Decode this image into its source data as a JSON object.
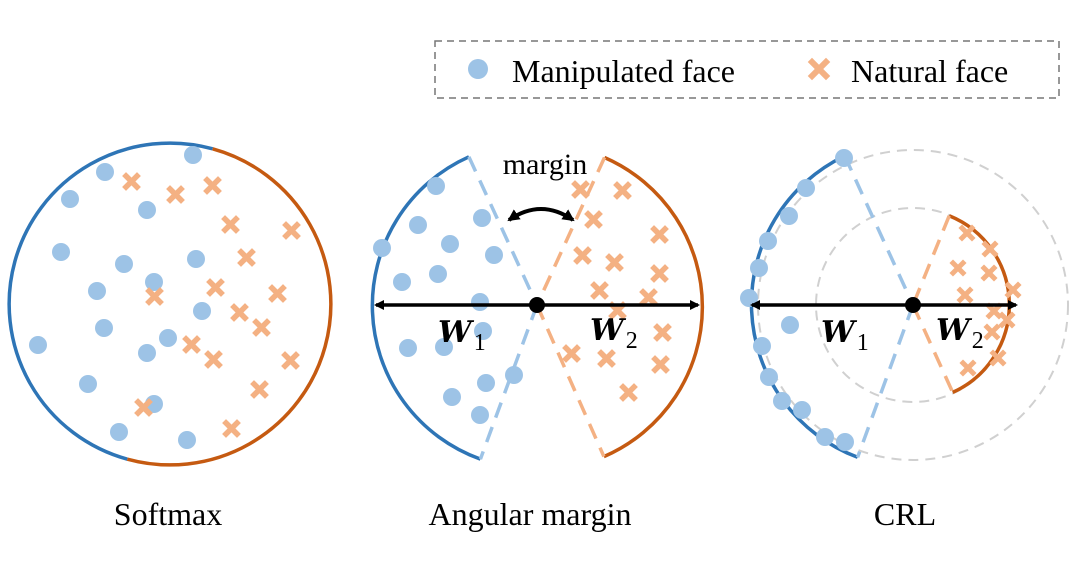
{
  "legend": {
    "manipulated_label": "Manipulated face",
    "natural_label": "Natural face"
  },
  "panels": {
    "softmax": {
      "caption": "Softmax"
    },
    "angular": {
      "caption": "Angular margin",
      "margin_label": "margin",
      "w1": "W",
      "w1_sub": "1",
      "w2": "W",
      "w2_sub": "2"
    },
    "crl": {
      "caption": "CRL",
      "w1": "W",
      "w1_sub": "1",
      "w2": "W",
      "w2_sub": "2"
    }
  },
  "colors": {
    "manipulated_point": "#9dc3e6",
    "natural_point": "#f4b183",
    "manipulated_arc": "#2e75b6",
    "natural_arc": "#c55a11",
    "arrow": "#000000",
    "dashed_ring": "#d0d0d0"
  },
  "icons": {
    "manipulated": "blue-circle-marker",
    "natural": "orange-cross-marker"
  }
}
